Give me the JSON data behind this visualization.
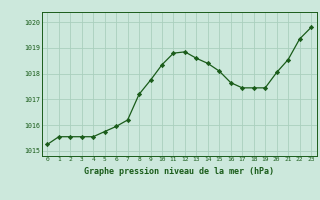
{
  "x": [
    0,
    1,
    2,
    3,
    4,
    5,
    6,
    7,
    8,
    9,
    10,
    11,
    12,
    13,
    14,
    15,
    16,
    17,
    18,
    19,
    20,
    21,
    22,
    23
  ],
  "y": [
    1015.25,
    1015.55,
    1015.55,
    1015.55,
    1015.55,
    1015.75,
    1015.95,
    1016.2,
    1017.2,
    1017.75,
    1018.35,
    1018.8,
    1018.85,
    1018.6,
    1018.4,
    1018.1,
    1017.65,
    1017.45,
    1017.45,
    1017.45,
    1018.05,
    1018.55,
    1019.35,
    1019.8
  ],
  "line_color": "#1a5c1a",
  "marker_color": "#1a5c1a",
  "bg_color": "#cce8dc",
  "grid_color": "#aacfbe",
  "xlabel": "Graphe pression niveau de la mer (hPa)",
  "xlabel_color": "#1a5c1a",
  "tick_color": "#1a5c1a",
  "ylim_min": 1014.8,
  "ylim_max": 1020.4,
  "xlim_min": -0.5,
  "xlim_max": 23.5,
  "yticks": [
    1015,
    1016,
    1017,
    1018,
    1019,
    1020
  ],
  "xticks": [
    0,
    1,
    2,
    3,
    4,
    5,
    6,
    7,
    8,
    9,
    10,
    11,
    12,
    13,
    14,
    15,
    16,
    17,
    18,
    19,
    20,
    21,
    22,
    23
  ]
}
